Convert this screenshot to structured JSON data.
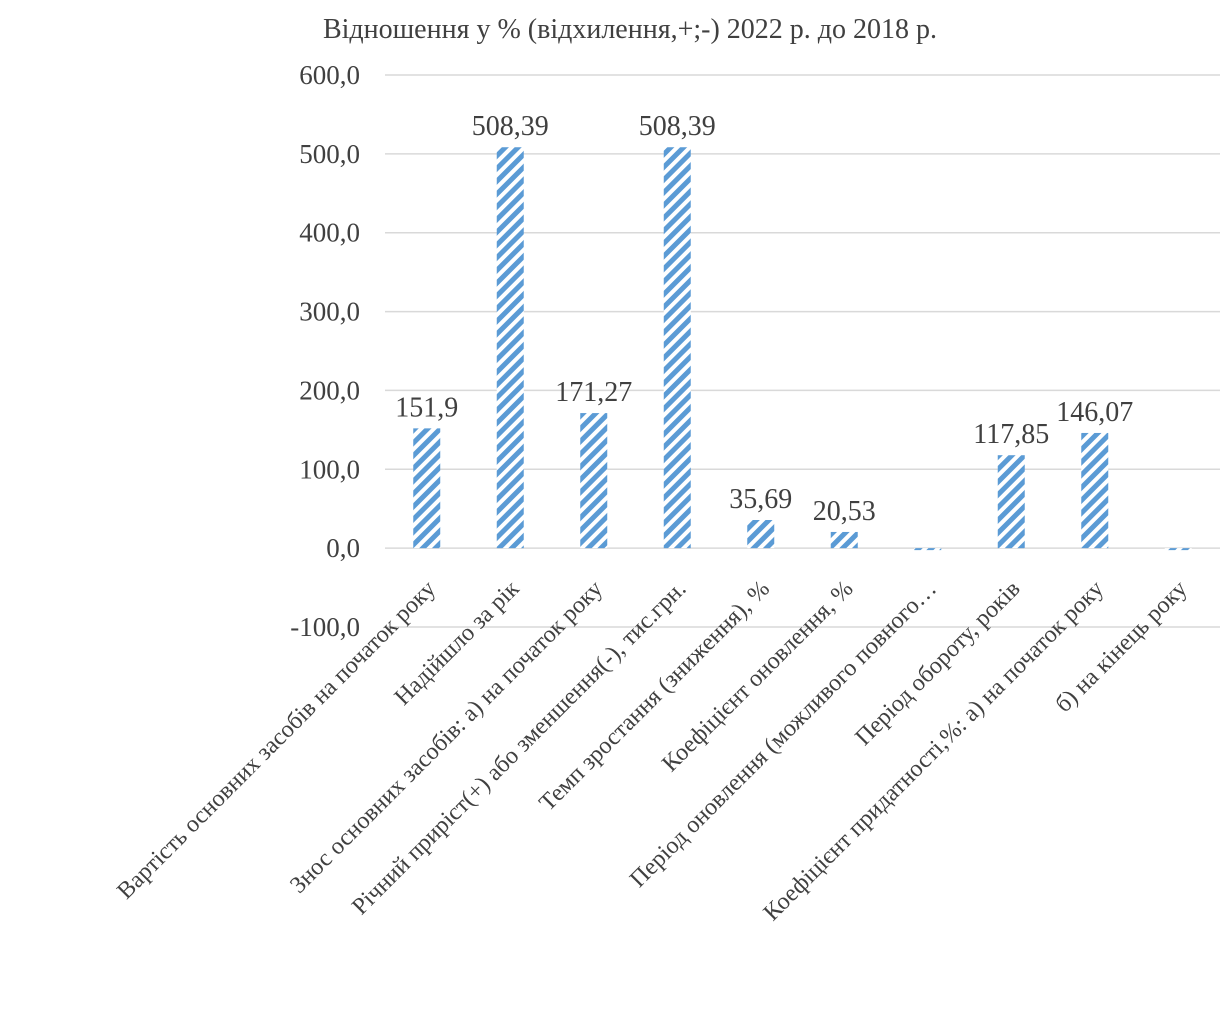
{
  "chart_data": {
    "type": "bar",
    "title": "Відношення у % (відхилення,+;-) 2022 р. до 2018 р.",
    "xlabel": "",
    "ylabel": "",
    "ylim": [
      -100,
      600
    ],
    "ytick_step": 100,
    "ytick_labels": [
      "-100,0",
      "0,0",
      "100,0",
      "200,0",
      "300,0",
      "400,0",
      "500,0",
      "600,0"
    ],
    "grid": true,
    "legend": "none",
    "bar_color": "#5b9bd5",
    "bar_pattern": "diagonal-stripes",
    "categories": [
      "Вартість основних засобів на початок року",
      "Надійшло за рік",
      "Знос основних засобів: а) на початок року",
      "Річний приріст(+) або зменшення(-), тис.грн.",
      "Темп зростання (зниження), %",
      "Коефіцієнт оновлення, %",
      "Період оновлення (можливого повного…",
      "Період обороту, років",
      "Коефіцієнт придатності,%: а) на початок року",
      "б) на кінець року"
    ],
    "values": [
      151.9,
      508.39,
      171.27,
      508.39,
      35.69,
      20.53,
      -2.5,
      117.85,
      146.07,
      -2.5
    ],
    "data_labels": [
      "151,9",
      "508,39",
      "171,27",
      "508,39",
      "35,69",
      "20,53",
      "",
      "117,85",
      "146,07",
      ""
    ]
  }
}
